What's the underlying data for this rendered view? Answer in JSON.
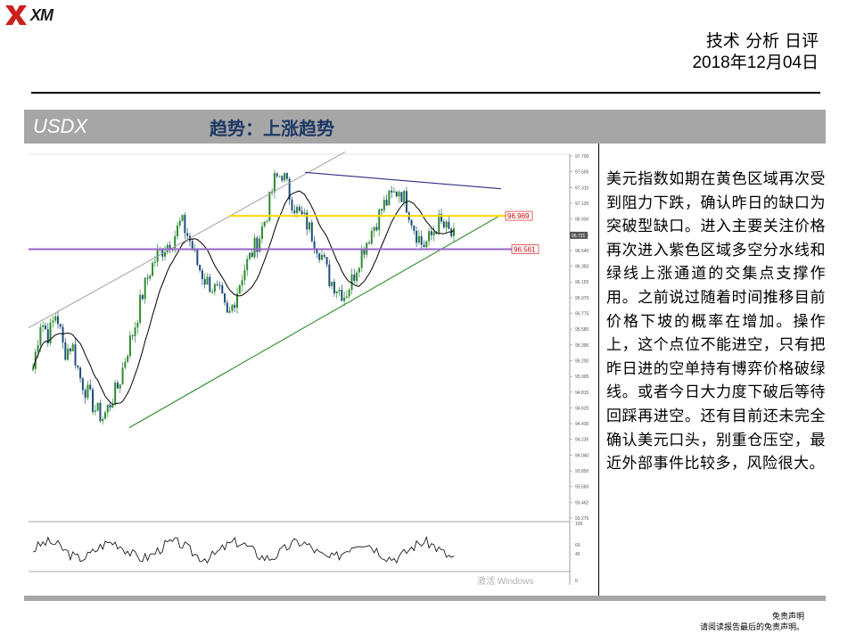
{
  "logo": {
    "text": "XM",
    "icon": "xm-logo-icon"
  },
  "header": {
    "title": "技术 分析 日评",
    "date": "2018年12月04日"
  },
  "banner": {
    "symbol": "USDX",
    "trend": "趋势：上涨趋势"
  },
  "chart_data": {
    "type": "candlestick",
    "symbol": "USDX",
    "ylim": [
      93.275,
      97.7
    ],
    "yticks": [
      "97.700",
      "97.505",
      "97.310",
      "97.125",
      "96.930",
      "96.735",
      "96.540",
      "96.350",
      "96.155",
      "95.970",
      "95.775",
      "95.580",
      "95.390",
      "95.200",
      "95.005",
      "94.815",
      "94.620",
      "94.430",
      "94.235",
      "94.040",
      "93.850",
      "93.660",
      "93.462",
      "93.275"
    ],
    "levels": [
      {
        "label": "96.969",
        "value": 96.969,
        "color": "#ffd700"
      },
      {
        "label": "96.561",
        "value": 96.561,
        "color": "#9966cc"
      }
    ],
    "current_price": "96.731",
    "lines": {
      "upper_trend": "#a0a0a0",
      "resistance_trend": "#2e2e8a",
      "support_trend": "#2e8b2e",
      "moving_average": "#000000"
    },
    "oscillator": {
      "ticks": [
        "100",
        "60",
        "40",
        "0"
      ]
    },
    "colors": {
      "bull": "#2e8b2e",
      "bear": "#1f4e79"
    }
  },
  "watermark": "激活 Windows",
  "analysis_text": "美元指数如期在黄色区域再次受到阻力下跌，确认昨日的缺口为突破型缺口。进入主要关注价格再次进入紫色区域多空分水线和绿线上涨通道的交集点支撑作用。之前说过随着时间推移目前价格下坡的概率在增加。操作上，这个点位不能进空，只有把昨日进的空单持有博弈价格破绿线。或者今日大力度下破后等待回踩再进空。还有目前还未完全确认美元口头，别重仓压空，最近外部事件比较多，风险很大。",
  "disclaimer": {
    "line1": "免责声明",
    "line2": "请阅读报告最后的免责声明。"
  }
}
